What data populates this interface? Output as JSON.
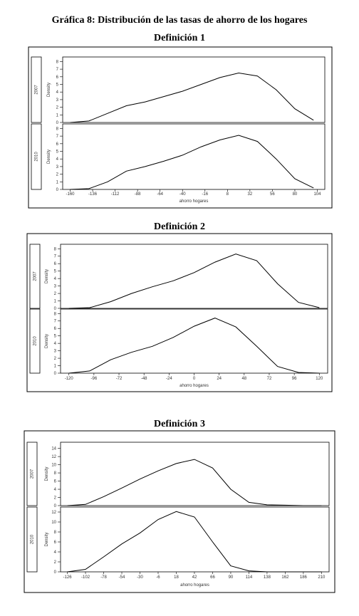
{
  "title": "Gráfica 8: Distribución de las tasas de ahorro de los hogares",
  "chart_data": [
    {
      "type": "line",
      "title": "Definición 1",
      "x_label": "ahorro hogares",
      "y_label": "Density",
      "x": [
        -160,
        -140,
        -120,
        -100,
        -80,
        -60,
        -40,
        -20,
        0,
        20,
        40,
        60,
        80,
        100
      ],
      "xlim": [
        -168,
        112
      ],
      "xticks": [
        -160,
        -136,
        -112,
        -88,
        -64,
        -40,
        -16,
        8,
        32,
        56,
        80,
        104
      ],
      "series": [
        {
          "name": "2007",
          "color": "#000000",
          "ylim": [
            0,
            8.6
          ],
          "yticks": [
            0,
            1,
            2,
            3,
            4,
            5,
            6,
            7,
            8
          ],
          "values": [
            0,
            0.2,
            1.2,
            2.2,
            2.7,
            3.4,
            4.1,
            5.0,
            5.9,
            6.5,
            6.1,
            4.3,
            1.8,
            0.3
          ]
        },
        {
          "name": "2010",
          "color": "#000000",
          "ylim": [
            0,
            8.6
          ],
          "yticks": [
            0,
            1,
            2,
            3,
            4,
            5,
            6,
            7,
            8
          ],
          "values": [
            0,
            0.1,
            1.0,
            2.4,
            3.0,
            3.7,
            4.5,
            5.6,
            6.5,
            7.1,
            6.3,
            4.0,
            1.4,
            0.2
          ]
        }
      ]
    },
    {
      "type": "line",
      "title": "Definición 2",
      "x_label": "ahorro hogares",
      "y_label": "Density",
      "x": [
        -120,
        -100,
        -80,
        -60,
        -40,
        -20,
        0,
        20,
        40,
        60,
        80,
        100,
        120
      ],
      "xlim": [
        -128,
        128
      ],
      "xticks": [
        -120,
        -96,
        -72,
        -48,
        -24,
        0,
        24,
        48,
        72,
        96,
        120
      ],
      "series": [
        {
          "name": "2007",
          "color": "#000000",
          "ylim": [
            0,
            8.6
          ],
          "yticks": [
            0,
            1,
            2,
            3,
            4,
            5,
            6,
            7,
            8
          ],
          "values": [
            0,
            0.1,
            0.9,
            2.0,
            2.9,
            3.7,
            4.8,
            6.2,
            7.3,
            6.4,
            3.3,
            0.8,
            0.1
          ]
        },
        {
          "name": "2010",
          "color": "#000000",
          "ylim": [
            0,
            8.6
          ],
          "yticks": [
            0,
            1,
            2,
            3,
            4,
            5,
            6,
            7,
            8
          ],
          "values": [
            0,
            0.3,
            1.8,
            2.8,
            3.6,
            4.8,
            6.3,
            7.4,
            6.2,
            3.6,
            0.9,
            0.1,
            0
          ]
        }
      ]
    },
    {
      "type": "line",
      "title": "Definición 3",
      "x_label": "ahorro hogares",
      "y_label": "Density",
      "x": [
        -126,
        -102,
        -78,
        -54,
        -30,
        -6,
        18,
        42,
        66,
        90,
        114,
        138,
        162,
        186,
        210
      ],
      "xlim": [
        -135,
        220
      ],
      "xticks": [
        -126,
        -102,
        -78,
        -54,
        -30,
        -6,
        18,
        42,
        66,
        90,
        114,
        138,
        162,
        186,
        210
      ],
      "series": [
        {
          "name": "2007",
          "color": "#000000",
          "ylim": [
            0,
            15.5
          ],
          "yticks": [
            0,
            2,
            4,
            6,
            8,
            10,
            12,
            14
          ],
          "values": [
            0,
            0.3,
            2.2,
            4.3,
            6.5,
            8.5,
            10.3,
            11.3,
            9.2,
            4.0,
            0.8,
            0.2,
            0.1,
            0,
            0
          ]
        },
        {
          "name": "2010",
          "color": "#000000",
          "ylim": [
            0,
            13
          ],
          "yticks": [
            0,
            2,
            4,
            6,
            8,
            10,
            12
          ],
          "values": [
            0,
            0.5,
            3.0,
            5.6,
            7.8,
            10.5,
            12.1,
            11.0,
            6.0,
            1.2,
            0.2,
            0,
            0,
            0,
            0
          ]
        }
      ]
    }
  ]
}
